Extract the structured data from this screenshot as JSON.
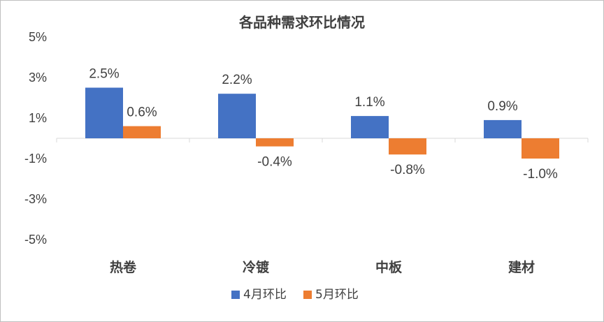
{
  "chart_data": {
    "type": "bar",
    "title": "各品种需求环比情况",
    "categories": [
      "热卷",
      "冷镀",
      "中板",
      "建材"
    ],
    "series": [
      {
        "name": "4月环比",
        "values": [
          2.5,
          2.2,
          1.1,
          0.9
        ],
        "labels": [
          "2.5%",
          "2.2%",
          "1.1%",
          "0.9%"
        ],
        "color": "#4472c4"
      },
      {
        "name": "5月环比",
        "values": [
          0.6,
          -0.4,
          -0.8,
          -1.0
        ],
        "labels": [
          "0.6%",
          "-0.4%",
          "-0.8%",
          "-1.0%"
        ],
        "color": "#ed7d31"
      }
    ],
    "yticks": [
      5,
      3,
      1,
      -1,
      -3,
      -5
    ],
    "ytick_labels": [
      "5%",
      "3%",
      "1%",
      "-1%",
      "-3%",
      "-5%"
    ],
    "ylim": [
      -5,
      5
    ],
    "grid": false,
    "legend_position": "bottom"
  }
}
